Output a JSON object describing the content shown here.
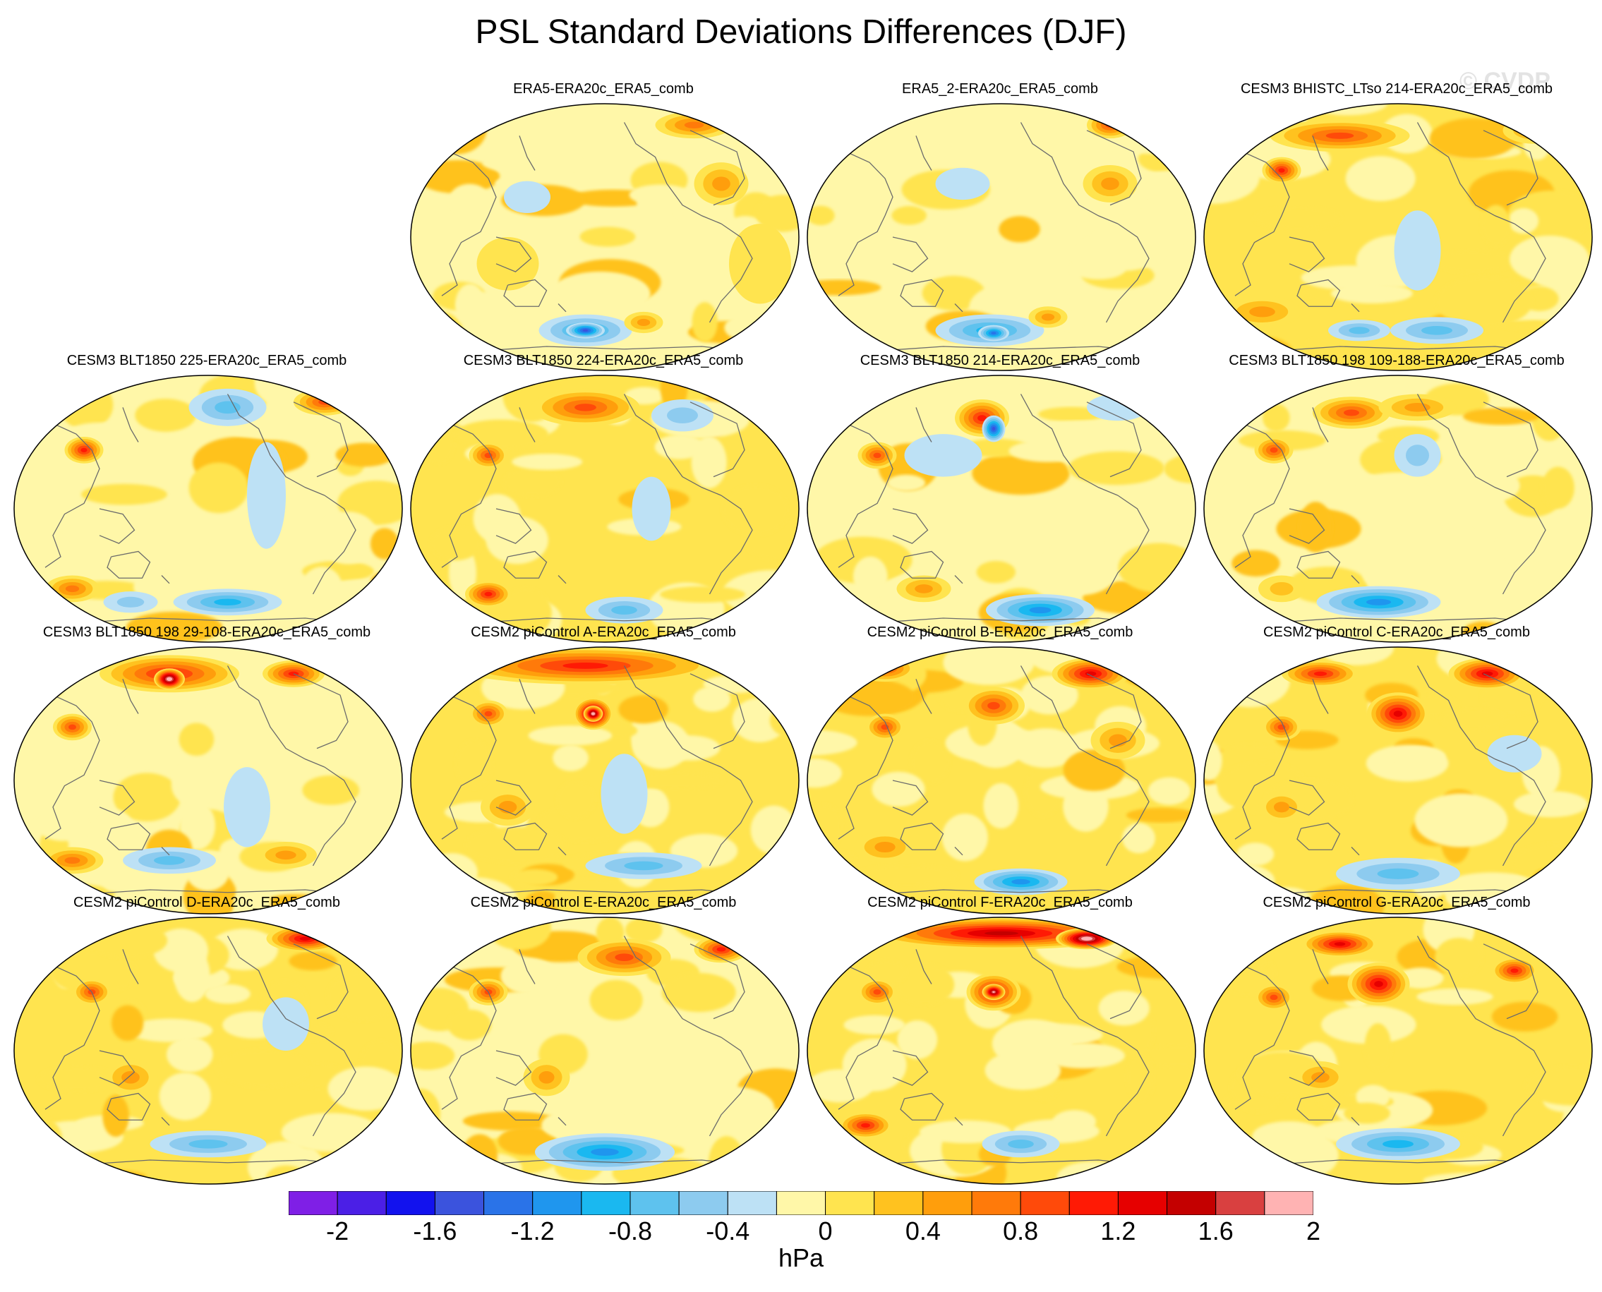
{
  "title": "PSL Standard Deviations Differences (DJF)",
  "watermark": "© CVDP",
  "panels": [
    null,
    {
      "label": "ERA5-ERA20c_ERA5_comb",
      "pattern": "obs1"
    },
    {
      "label": "ERA5_2-ERA20c_ERA5_comb",
      "pattern": "obs2"
    },
    {
      "label": "CESM3 BHISTC_LTso 214-ERA20c_ERA5_comb",
      "pattern": "bhist"
    },
    {
      "label": "CESM3 BLT1850 225-ERA20c_ERA5_comb",
      "pattern": "blt225"
    },
    {
      "label": "CESM3 BLT1850 224-ERA20c_ERA5_comb",
      "pattern": "blt224"
    },
    {
      "label": "CESM3 BLT1850 214-ERA20c_ERA5_comb",
      "pattern": "blt214"
    },
    {
      "label": "CESM3 BLT1850 198 109-188-ERA20c_ERA5_comb",
      "pattern": "blt198b"
    },
    {
      "label": "CESM3 BLT1850 198 29-108-ERA20c_ERA5_comb",
      "pattern": "blt198a"
    },
    {
      "label": "CESM2 piControl A-ERA20c_ERA5_comb",
      "pattern": "picA"
    },
    {
      "label": "CESM2 piControl B-ERA20c_ERA5_comb",
      "pattern": "picB"
    },
    {
      "label": "CESM2 piControl C-ERA20c_ERA5_comb",
      "pattern": "picC"
    },
    {
      "label": "CESM2 piControl D-ERA20c_ERA5_comb",
      "pattern": "picD"
    },
    {
      "label": "CESM2 piControl E-ERA20c_ERA5_comb",
      "pattern": "picE"
    },
    {
      "label": "CESM2 piControl F-ERA20c_ERA5_comb",
      "pattern": "picF"
    },
    {
      "label": "CESM2 piControl G-ERA20c_ERA5_comb",
      "pattern": "picG"
    }
  ],
  "colorbar": {
    "colors": [
      "#7f1fe6",
      "#4b1fe6",
      "#1212ee",
      "#3b53dd",
      "#2a73e8",
      "#1f96ee",
      "#1ab8f0",
      "#5ec2ee",
      "#8dcbef",
      "#bde1f5",
      "#fff7a8",
      "#ffe44f",
      "#ffc21f",
      "#ff9e0c",
      "#ff7a0a",
      "#ff4a0a",
      "#ff1a05",
      "#e60000",
      "#c40000",
      "#d94040",
      "#ffb3b3"
    ],
    "tick_labels": [
      "-2",
      "-1.6",
      "-1.2",
      "-0.8",
      "-0.4",
      "0",
      "0.4",
      "0.8",
      "1.2",
      "1.6",
      "2"
    ],
    "units": "hPa"
  }
}
